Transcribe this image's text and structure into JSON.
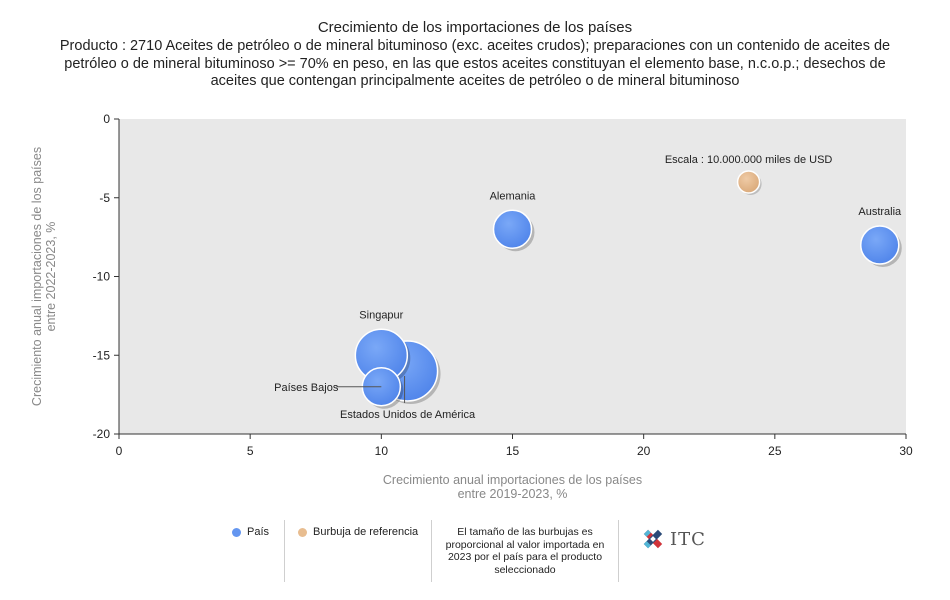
{
  "title": "Crecimiento de los importaciones de los países",
  "subtitle": "Producto : 2710 Aceites de petróleo o de mineral bituminoso (exc. aceites crudos); preparaciones con un contenido de aceites de petróleo o de mineral bituminoso >= 70% en peso, en las que estos aceites constituyan el elemento base, n.c.o.p.; desechos de aceites que contengan principalmente aceites de petróleo o de mineral bituminoso",
  "chart_data": {
    "type": "scatter",
    "xlabel_line1": "Crecimiento anual importaciones de los países",
    "xlabel_line2": "entre 2019-2023, %",
    "ylabel_line1": "Crecimiento anual importaciones de los países",
    "ylabel_line2": "entre 2022-2023, %",
    "xlim": [
      0,
      30
    ],
    "ylim": [
      -20,
      0
    ],
    "x_ticks": [
      0,
      5,
      10,
      15,
      20,
      25,
      30
    ],
    "y_ticks": [
      0,
      -5,
      -10,
      -15,
      -20
    ],
    "grid": false,
    "points": [
      {
        "label": "Estados Unidos de América",
        "x": 11,
        "y": -16,
        "size": 30
      },
      {
        "label": "Singapur",
        "x": 10,
        "y": -15,
        "size": 26
      },
      {
        "label": "Países Bajos",
        "x": 10,
        "y": -17,
        "size": 19
      },
      {
        "label": "Alemania",
        "x": 15,
        "y": -7,
        "size": 19
      },
      {
        "label": "Australia",
        "x": 29,
        "y": -8,
        "size": 19
      }
    ],
    "reference": {
      "label": "Escala : 10.000.000 miles de USD",
      "x": 24,
      "y": -4,
      "size": 11
    }
  },
  "colors": {
    "country": "#6496f0",
    "reference": "#e8bd90",
    "plot_bg": "#e8e8e8"
  },
  "legend": {
    "country": "País",
    "reference": "Burbuja de referencia",
    "note": "El tamaño de las burbujas es proporcional al valor importada en 2023 por el país para el producto seleccionado",
    "logo": "ITC"
  }
}
